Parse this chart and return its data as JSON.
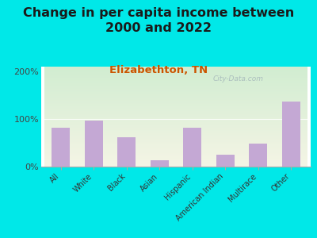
{
  "title": "Change in per capita income between\n2000 and 2022",
  "subtitle": "Elizabethton, TN",
  "categories": [
    "All",
    "White",
    "Black",
    "Asian",
    "Hispanic",
    "American Indian",
    "Multirace",
    "Other"
  ],
  "values": [
    82,
    97,
    62,
    13,
    82,
    25,
    48,
    137
  ],
  "bar_color": "#c4a8d4",
  "title_fontsize": 11.5,
  "subtitle_fontsize": 9.5,
  "subtitle_color": "#cc5500",
  "background_outer": "#00e8e8",
  "plot_bg_top_left": "#d4ecd4",
  "plot_bg_bottom_right": "#f0f0e0",
  "ylabel_ticks": [
    "0%",
    "100%",
    "200%"
  ],
  "ytick_vals": [
    0,
    100,
    200
  ],
  "ylim": [
    0,
    210
  ],
  "watermark": "City-Data.com"
}
